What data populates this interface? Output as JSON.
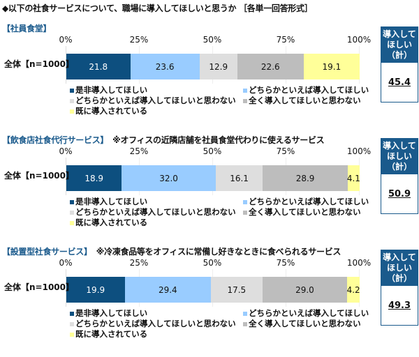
{
  "title": "◆以下の社食サービスについて、職場に導入してほしいと思うか ［各単一回答形式］",
  "axis_ticks": [
    "0%",
    "25%",
    "50%",
    "75%",
    "100%"
  ],
  "legend": [
    {
      "label": "是非導入してほしい",
      "color": "#0d4f7f"
    },
    {
      "label": "どちらかといえば導入してほしい",
      "color": "#99ccff"
    },
    {
      "label": "どちらかといえば導入してほしいと思わない",
      "color": "#dedede"
    },
    {
      "label": "全く導入してほしいと思わない",
      "color": "#bdbdbd"
    },
    {
      "label": "既に導入されている",
      "color": "#ffff99"
    }
  ],
  "box_header": "導入して\nほしい\n（計）",
  "sections": [
    {
      "name": "【社員食堂】",
      "note": "",
      "row_label": "全体【n=1000】",
      "values": [
        "21.8",
        "23.6",
        "12.9",
        "22.6",
        "19.1"
      ],
      "total": "45.4"
    },
    {
      "name": "【飲食店社食代行サービス】",
      "note": "※オフィスの近隣店舗を社員食堂代わりに使えるサービス",
      "row_label": "全体【n=1000】",
      "values": [
        "18.9",
        "32.0",
        "16.1",
        "28.9",
        "4.1"
      ],
      "total": "50.9"
    },
    {
      "name": "【設置型社食サービス】",
      "note": "※冷凍食品等をオフィスに常備し好きなときに食べられるサービス",
      "row_label": "全体【n=1000】",
      "values": [
        "19.9",
        "29.4",
        "17.5",
        "29.0",
        "4.2"
      ],
      "total": "49.3"
    }
  ],
  "chart_data": [
    {
      "type": "bar",
      "title": "【社員食堂】",
      "orientation": "horizontal-stacked-100",
      "categories": [
        "全体【n=1000】"
      ],
      "series": [
        {
          "name": "是非導入してほしい",
          "values": [
            21.8
          ]
        },
        {
          "name": "どちらかといえば導入してほしい",
          "values": [
            23.6
          ]
        },
        {
          "name": "どちらかといえば導入してほしいと思わない",
          "values": [
            12.9
          ]
        },
        {
          "name": "全く導入してほしいと思わない",
          "values": [
            22.6
          ]
        },
        {
          "name": "既に導入されている",
          "values": [
            19.1
          ]
        }
      ],
      "total_want": 45.4,
      "xlim": [
        0,
        100
      ],
      "xticks": [
        "0%",
        "25%",
        "50%",
        "75%",
        "100%"
      ],
      "legend_position": "bottom"
    },
    {
      "type": "bar",
      "title": "【飲食店社食代行サービス】 ※オフィスの近隣店舗を社員食堂代わりに使えるサービス",
      "orientation": "horizontal-stacked-100",
      "categories": [
        "全体【n=1000】"
      ],
      "series": [
        {
          "name": "是非導入してほしい",
          "values": [
            18.9
          ]
        },
        {
          "name": "どちらかといえば導入してほしい",
          "values": [
            32.0
          ]
        },
        {
          "name": "どちらかといえば導入してほしいと思わない",
          "values": [
            16.1
          ]
        },
        {
          "name": "全く導入してほしいと思わない",
          "values": [
            28.9
          ]
        },
        {
          "name": "既に導入されている",
          "values": [
            4.1
          ]
        }
      ],
      "total_want": 50.9,
      "xlim": [
        0,
        100
      ],
      "xticks": [
        "0%",
        "25%",
        "50%",
        "75%",
        "100%"
      ],
      "legend_position": "bottom"
    },
    {
      "type": "bar",
      "title": "【設置型社食サービス】 ※冷凍食品等をオフィスに常備し好きなときに食べられるサービス",
      "orientation": "horizontal-stacked-100",
      "categories": [
        "全体【n=1000】"
      ],
      "series": [
        {
          "name": "是非導入してほしい",
          "values": [
            19.9
          ]
        },
        {
          "name": "どちらかといえば導入してほしい",
          "values": [
            29.4
          ]
        },
        {
          "name": "どちらかといえば導入してほしいと思わない",
          "values": [
            17.5
          ]
        },
        {
          "name": "全く導入してほしいと思わない",
          "values": [
            29.0
          ]
        },
        {
          "name": "既に導入されている",
          "values": [
            4.2
          ]
        }
      ],
      "total_want": 49.3,
      "xlim": [
        0,
        100
      ],
      "xticks": [
        "0%",
        "25%",
        "50%",
        "75%",
        "100%"
      ],
      "legend_position": "bottom"
    }
  ]
}
